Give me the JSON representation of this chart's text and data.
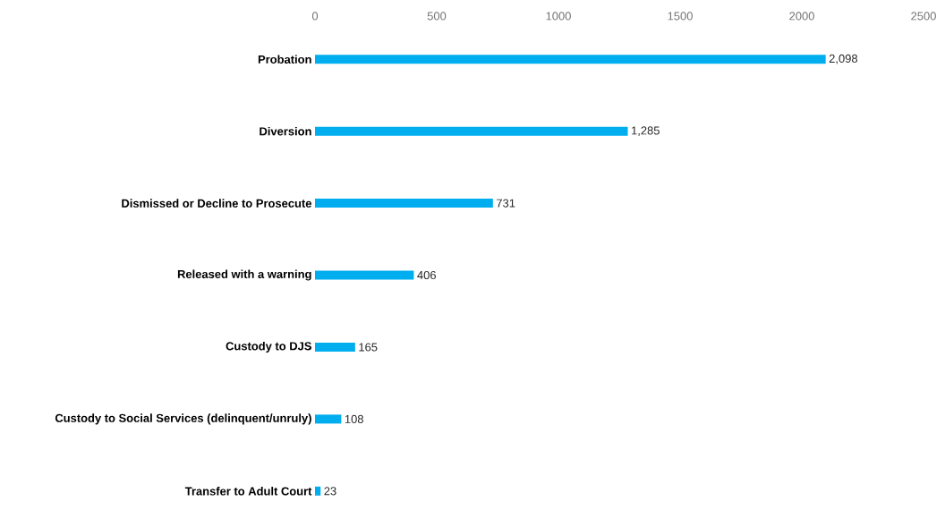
{
  "chart_data": {
    "type": "bar",
    "orientation": "horizontal",
    "categories": [
      "Probation",
      "Diversion",
      "Dismissed or Decline to Prosecute",
      "Released with a warning",
      "Custody to DJS",
      "Custody to Social Services (delinquent/unruly)",
      "Transfer to Adult Court"
    ],
    "values": [
      2098,
      1285,
      731,
      406,
      165,
      108,
      23
    ],
    "value_labels": [
      "2,098",
      "1,285",
      "731",
      "406",
      "165",
      "108",
      "23"
    ],
    "color": "#00aeef",
    "xlim": [
      0,
      2500
    ],
    "xticks": [
      0,
      500,
      1000,
      1500,
      2000,
      2500
    ]
  }
}
